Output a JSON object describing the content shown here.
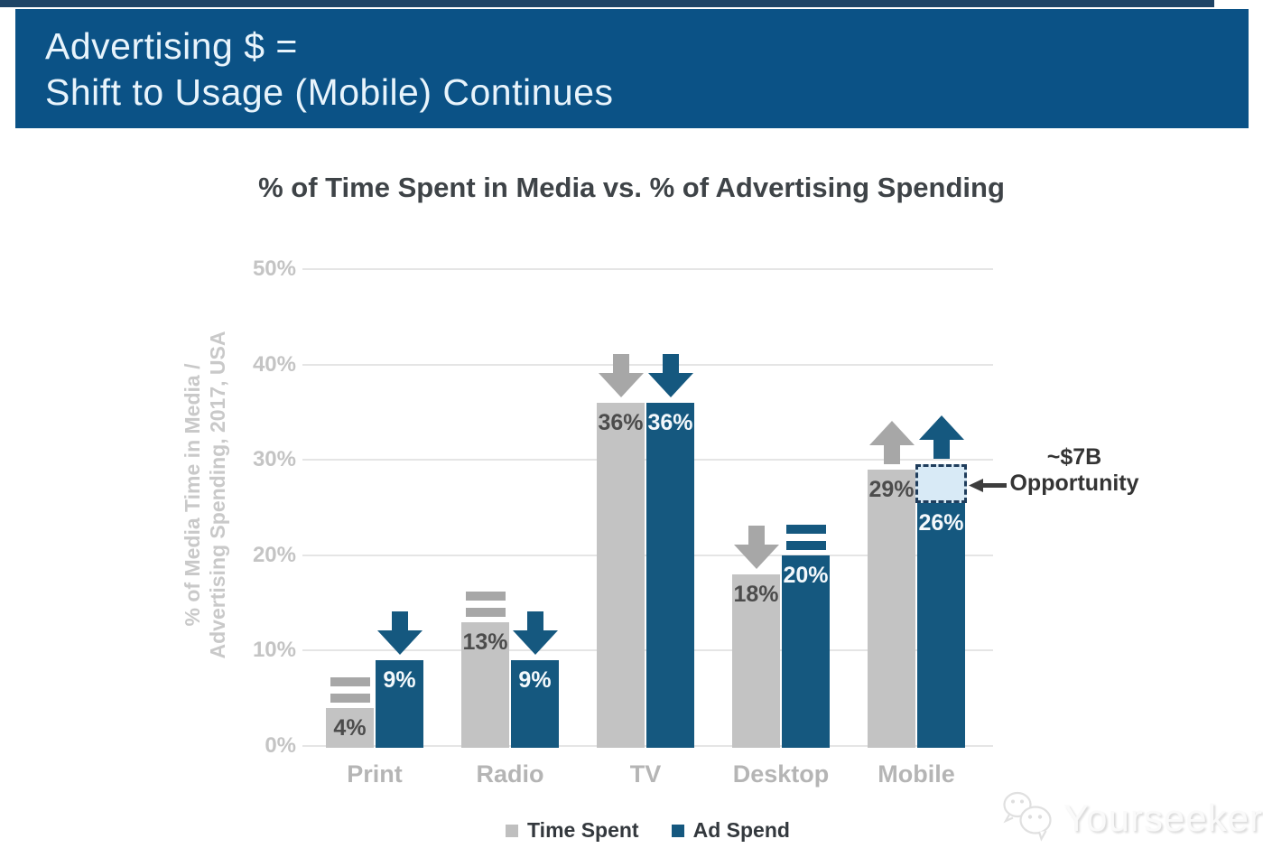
{
  "header": {
    "line1": "Advertising $ =",
    "line2": "Shift to Usage (Mobile) Continues"
  },
  "chart_data": {
    "type": "bar",
    "title": "% of Time Spent in Media vs. % of Advertising Spending",
    "ylabel": [
      "% of Media Time in Media /",
      "Advertising Spending, 2017, USA"
    ],
    "categories": [
      "Print",
      "Radio",
      "TV",
      "Desktop",
      "Mobile"
    ],
    "series": [
      {
        "name": "Time Spent",
        "color": "#c3c3c3",
        "label_color": "#4c4c4c",
        "indicator_color": "#a7a7a7",
        "values": [
          4,
          13,
          36,
          18,
          29
        ],
        "trends": [
          "flat",
          "flat",
          "down",
          "down",
          "up"
        ]
      },
      {
        "name": "Ad Spend",
        "color": "#15587f",
        "label_color": "#f4f9fc",
        "indicator_color": "#15587f",
        "values": [
          9,
          9,
          36,
          20,
          26
        ],
        "trends": [
          "down",
          "down",
          "down",
          "flat",
          "up"
        ]
      }
    ],
    "ylim": [
      0,
      50
    ],
    "yticks_pct": [
      0,
      10,
      20,
      30,
      40,
      50
    ],
    "ytick_labels": [
      "0%",
      "10%",
      "20%",
      "30%",
      "40%",
      "50%"
    ],
    "grid": true,
    "legend_position": "bottom",
    "value_suffix": "%",
    "annotation": {
      "line1": "~$7B",
      "line2": "Opportunity"
    },
    "opportunity_box": {
      "category": "Mobile",
      "series": "Ad Spend",
      "from_pct": 26,
      "to_pct": 29.5
    }
  },
  "legend": {
    "items": [
      {
        "label": "Time Spent",
        "color": "#bfbfbf"
      },
      {
        "label": "Ad Spend",
        "color": "#15587f"
      }
    ]
  },
  "watermark": {
    "label": "Yourseeker"
  }
}
